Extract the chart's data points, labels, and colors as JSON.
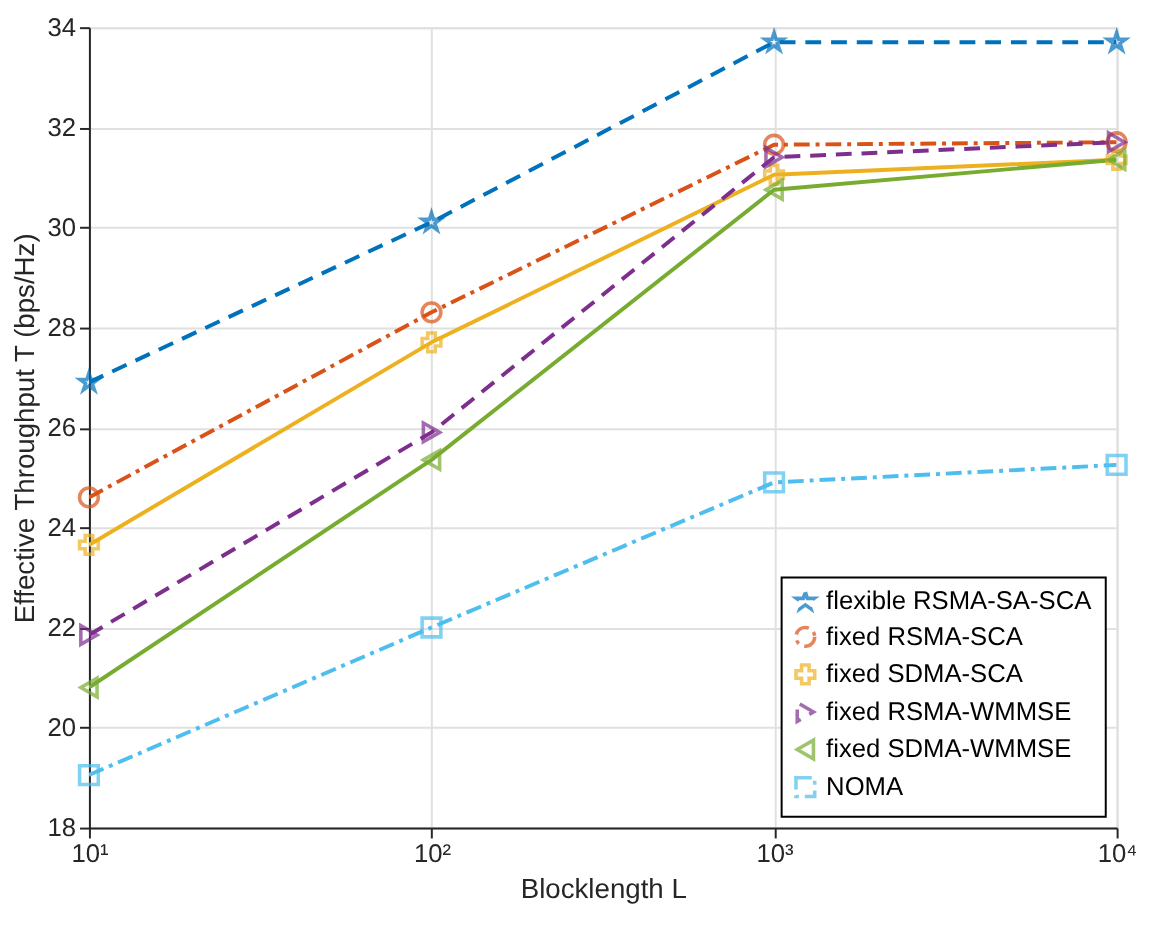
{
  "chart_data": {
    "type": "line",
    "xlabel": "Blocklength L",
    "ylabel": "Effective Throughput T (bps/Hz)",
    "log": "x",
    "x": [
      10,
      100,
      1000,
      10000
    ],
    "xlim": [
      10,
      10000
    ],
    "xticks": [
      {
        "value": 10,
        "label": "10¹"
      },
      {
        "value": 100,
        "label": "10²"
      },
      {
        "value": 1000,
        "label": "10³"
      },
      {
        "value": 10000,
        "label": "10⁴"
      }
    ],
    "ylim": [
      18,
      34
    ],
    "yticks": [
      18,
      20,
      22,
      24,
      26,
      28,
      30,
      32,
      34
    ],
    "grid": true,
    "legend": "bottom right",
    "series": [
      {
        "name": "flexible RSMA-SA-SCA",
        "color": "#0072bd",
        "marker": "star",
        "line_style": "dashed",
        "values": [
          26.9,
          30.1,
          33.7,
          33.7
        ]
      },
      {
        "name": "fixed RSMA-SCA",
        "color": "#d95319",
        "marker": "circle",
        "line_style": "dashdot",
        "values": [
          24.6,
          28.3,
          31.65,
          31.7
        ]
      },
      {
        "name": "fixed SDMA-SCA",
        "color": "#edb120",
        "marker": "cross",
        "line_style": "solid",
        "values": [
          23.65,
          27.7,
          31.05,
          31.35
        ]
      },
      {
        "name": "fixed RSMA-WMMSE",
        "color": "#7e2f8e",
        "marker": "triangle-right",
        "line_style": "dashed",
        "values": [
          21.85,
          25.9,
          31.4,
          31.7
        ]
      },
      {
        "name": "fixed SDMA-WMMSE",
        "color": "#77ac30",
        "marker": "triangle-left",
        "line_style": "solid",
        "values": [
          20.8,
          25.35,
          30.75,
          31.35
        ]
      },
      {
        "name": "NOMA",
        "color": "#4dbeee",
        "marker": "square",
        "line_style": "dashdot",
        "values": [
          19.05,
          22.0,
          24.9,
          25.25
        ]
      }
    ]
  }
}
